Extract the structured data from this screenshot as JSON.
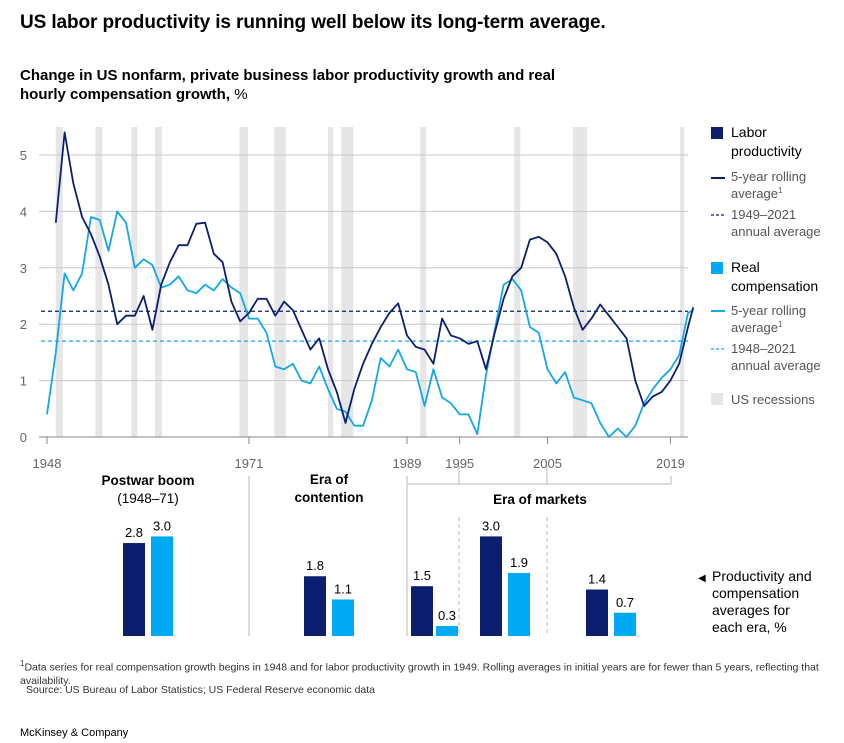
{
  "headline": "US labor productivity is running well below its long-term average.",
  "subtitle": "Change in US nonfarm, private business labor productivity growth and real hourly compensation growth,",
  "subtitle_unit": "%",
  "colors": {
    "labor_bar": "#0c1f6f",
    "labor_line": "#0c1f6f",
    "comp_bar": "#00a9f4",
    "comp_line": "#12a8ea",
    "recession": "#e6e6e6",
    "grid": "#c8c8c8"
  },
  "legend": {
    "labor_title": "Labor productivity",
    "labor_rolling": "5-year rolling average",
    "labor_avg": "1949–2021 annual average",
    "comp_title": "Real compensation",
    "comp_rolling": "5-year rolling average",
    "comp_avg": "1948–2021 annual average",
    "recessions": "US recessions",
    "footnote_mark": "1"
  },
  "chart_data": [
    {
      "type": "line",
      "x_tick_labels": [
        "1948",
        "1971",
        "1989",
        "1995",
        "2005",
        "2019"
      ],
      "x_ticks": [
        1948,
        1971,
        1989,
        1995,
        2005,
        2019
      ],
      "y_ticks": [
        0,
        1,
        2,
        3,
        4,
        5
      ],
      "ylim": [
        0,
        5.6
      ],
      "xlim": [
        1948,
        2021
      ],
      "grid": true,
      "recessions": [
        [
          1949,
          1949.8
        ],
        [
          1953.5,
          1954.3
        ],
        [
          1957.6,
          1958.3
        ],
        [
          1960.3,
          1961.1
        ],
        [
          1969.9,
          1970.9
        ],
        [
          1973.9,
          1975.2
        ],
        [
          1980,
          1980.6
        ],
        [
          1981.5,
          1982.9
        ],
        [
          1990.5,
          1991.2
        ],
        [
          2001.2,
          2001.9
        ],
        [
          2007.9,
          2009.5
        ],
        [
          2020.1,
          2020.5
        ]
      ],
      "series": [
        {
          "name": "Labor productivity",
          "style": "solid",
          "points": [
            [
              1949,
              3.8
            ],
            [
              1950,
              5.4
            ],
            [
              1951,
              4.5
            ],
            [
              1952,
              3.9
            ],
            [
              1953,
              3.6
            ],
            [
              1954,
              3.2
            ],
            [
              1955,
              2.7
            ],
            [
              1956,
              2.0
            ],
            [
              1957,
              2.15
            ],
            [
              1958,
              2.15
            ],
            [
              1959,
              2.5
            ],
            [
              1960,
              1.9
            ],
            [
              1961,
              2.7
            ],
            [
              1962,
              3.1
            ],
            [
              1963,
              3.4
            ],
            [
              1964,
              3.4
            ],
            [
              1965,
              3.78
            ],
            [
              1966,
              3.8
            ],
            [
              1967,
              3.25
            ],
            [
              1968,
              3.1
            ],
            [
              1969,
              2.4
            ],
            [
              1970,
              2.05
            ],
            [
              1971,
              2.2
            ],
            [
              1972,
              2.45
            ],
            [
              1973,
              2.45
            ],
            [
              1974,
              2.15
            ],
            [
              1975,
              2.4
            ],
            [
              1976,
              2.25
            ],
            [
              1977,
              1.9
            ],
            [
              1978,
              1.55
            ],
            [
              1979,
              1.75
            ],
            [
              1980,
              1.2
            ],
            [
              1981,
              0.8
            ],
            [
              1982,
              0.25
            ],
            [
              1983,
              0.85
            ],
            [
              1984,
              1.3
            ],
            [
              1985,
              1.65
            ],
            [
              1986,
              1.95
            ],
            [
              1987,
              2.2
            ],
            [
              1988,
              2.37
            ],
            [
              1989,
              1.8
            ],
            [
              1990,
              1.6
            ],
            [
              1991,
              1.55
            ],
            [
              1992,
              1.3
            ],
            [
              1993,
              2.1
            ],
            [
              1994,
              1.8
            ],
            [
              1995,
              1.75
            ],
            [
              1996,
              1.65
            ],
            [
              1997,
              1.7
            ],
            [
              1998,
              1.2
            ],
            [
              1999,
              1.85
            ],
            [
              2000,
              2.45
            ],
            [
              2001,
              2.85
            ],
            [
              2002,
              3.0
            ],
            [
              2003,
              3.5
            ],
            [
              2004,
              3.55
            ],
            [
              2005,
              3.45
            ],
            [
              2006,
              3.25
            ],
            [
              2007,
              2.85
            ],
            [
              2008,
              2.3
            ],
            [
              2009,
              1.9
            ],
            [
              2010,
              2.1
            ],
            [
              2011,
              2.35
            ],
            [
              2012,
              2.15
            ],
            [
              2013,
              1.95
            ],
            [
              2014,
              1.75
            ],
            [
              2015,
              1.0
            ],
            [
              2016,
              0.55
            ],
            [
              2017,
              0.72
            ],
            [
              2018,
              0.8
            ],
            [
              2019,
              1.0
            ],
            [
              2020,
              1.3
            ],
            [
              2021,
              1.95
            ],
            [
              2021.6,
              2.3
            ]
          ]
        },
        {
          "name": "Real compensation",
          "style": "solid",
          "points": [
            [
              1948,
              0.4
            ],
            [
              1949,
              1.5
            ],
            [
              1950,
              2.9
            ],
            [
              1951,
              2.6
            ],
            [
              1952,
              2.9
            ],
            [
              1953,
              3.9
            ],
            [
              1954,
              3.85
            ],
            [
              1955,
              3.3
            ],
            [
              1956,
              4.0
            ],
            [
              1957,
              3.8
            ],
            [
              1958,
              3.0
            ],
            [
              1959,
              3.15
            ],
            [
              1960,
              3.05
            ],
            [
              1961,
              2.65
            ],
            [
              1962,
              2.7
            ],
            [
              1963,
              2.85
            ],
            [
              1964,
              2.6
            ],
            [
              1965,
              2.55
            ],
            [
              1966,
              2.7
            ],
            [
              1967,
              2.6
            ],
            [
              1968,
              2.8
            ],
            [
              1969,
              2.65
            ],
            [
              1970,
              2.55
            ],
            [
              1971,
              2.1
            ],
            [
              1972,
              2.1
            ],
            [
              1973,
              1.85
            ],
            [
              1974,
              1.25
            ],
            [
              1975,
              1.2
            ],
            [
              1976,
              1.3
            ],
            [
              1977,
              1.0
            ],
            [
              1978,
              0.95
            ],
            [
              1979,
              1.25
            ],
            [
              1980,
              0.85
            ],
            [
              1981,
              0.5
            ],
            [
              1982,
              0.45
            ],
            [
              1983,
              0.2
            ],
            [
              1984,
              0.2
            ],
            [
              1985,
              0.65
            ],
            [
              1986,
              1.4
            ],
            [
              1987,
              1.25
            ],
            [
              1988,
              1.55
            ],
            [
              1989,
              1.2
            ],
            [
              1990,
              1.15
            ],
            [
              1991,
              0.55
            ],
            [
              1992,
              1.2
            ],
            [
              1993,
              0.7
            ],
            [
              1994,
              0.6
            ],
            [
              1995,
              0.4
            ],
            [
              1996,
              0.4
            ],
            [
              1997,
              0.05
            ],
            [
              1998,
              1.1
            ],
            [
              1999,
              1.9
            ],
            [
              2000,
              2.7
            ],
            [
              2001,
              2.8
            ],
            [
              2002,
              2.6
            ],
            [
              2003,
              1.95
            ],
            [
              2004,
              1.85
            ],
            [
              2005,
              1.2
            ],
            [
              2006,
              0.95
            ],
            [
              2007,
              1.15
            ],
            [
              2008,
              0.7
            ],
            [
              2009,
              0.65
            ],
            [
              2010,
              0.6
            ],
            [
              2011,
              0.25
            ],
            [
              2012,
              0.0
            ],
            [
              2013,
              0.15
            ],
            [
              2014,
              0.0
            ],
            [
              2015,
              0.2
            ],
            [
              2016,
              0.6
            ],
            [
              2017,
              0.85
            ],
            [
              2018,
              1.05
            ],
            [
              2019,
              1.2
            ],
            [
              2020,
              1.45
            ],
            [
              2021,
              2.2
            ],
            [
              2021.6,
              2.25
            ]
          ]
        },
        {
          "name": "Labor productivity 1949–2021 annual average",
          "style": "dashed",
          "value": 2.23
        },
        {
          "name": "Real compensation 1948–2021 annual average",
          "style": "dashed",
          "value": 1.7
        }
      ]
    },
    {
      "type": "bar",
      "ylim": [
        0,
        3.2
      ],
      "eras": [
        {
          "id": "postwar",
          "title": "Postwar boom",
          "subtitle": "(1948–71)",
          "categories": [
            "Labor productivity",
            "Real compensation"
          ],
          "values": [
            2.8,
            3.0
          ],
          "value_labels": [
            "2.8",
            "3.0"
          ]
        },
        {
          "id": "contention",
          "title": "Era of contention",
          "categories": [
            "Labor productivity",
            "Real compensation"
          ],
          "values": [
            1.8,
            1.1
          ],
          "value_labels": [
            "1.8",
            "1.1"
          ]
        },
        {
          "id": "markets_1",
          "group": "Era of markets",
          "categories": [
            "Labor productivity",
            "Real compensation"
          ],
          "values": [
            1.5,
            0.3
          ],
          "value_labels": [
            "1.5",
            "0.3"
          ]
        },
        {
          "id": "markets_2",
          "group": "Era of markets",
          "categories": [
            "Labor productivity",
            "Real compensation"
          ],
          "values": [
            3.0,
            1.9
          ],
          "value_labels": [
            "3.0",
            "1.9"
          ]
        },
        {
          "id": "markets_3",
          "group": "Era of markets",
          "categories": [
            "Labor productivity",
            "Real compensation"
          ],
          "values": [
            1.4,
            0.7
          ],
          "value_labels": [
            "1.4",
            "0.7"
          ]
        }
      ],
      "markets_title": "Era of markets",
      "annotation": "Productivity and compensation averages for each era, %",
      "annotation_arrow": "◀"
    }
  ],
  "footnote": "Data series for real compensation growth begins in 1948 and for labor productivity growth in 1949. Rolling averages in initial years are for fewer than 5 years, reflecting that availability.",
  "source": "Source: US Bureau of Labor Statistics; US Federal Reserve economic data",
  "brand": "McKinsey & Company"
}
